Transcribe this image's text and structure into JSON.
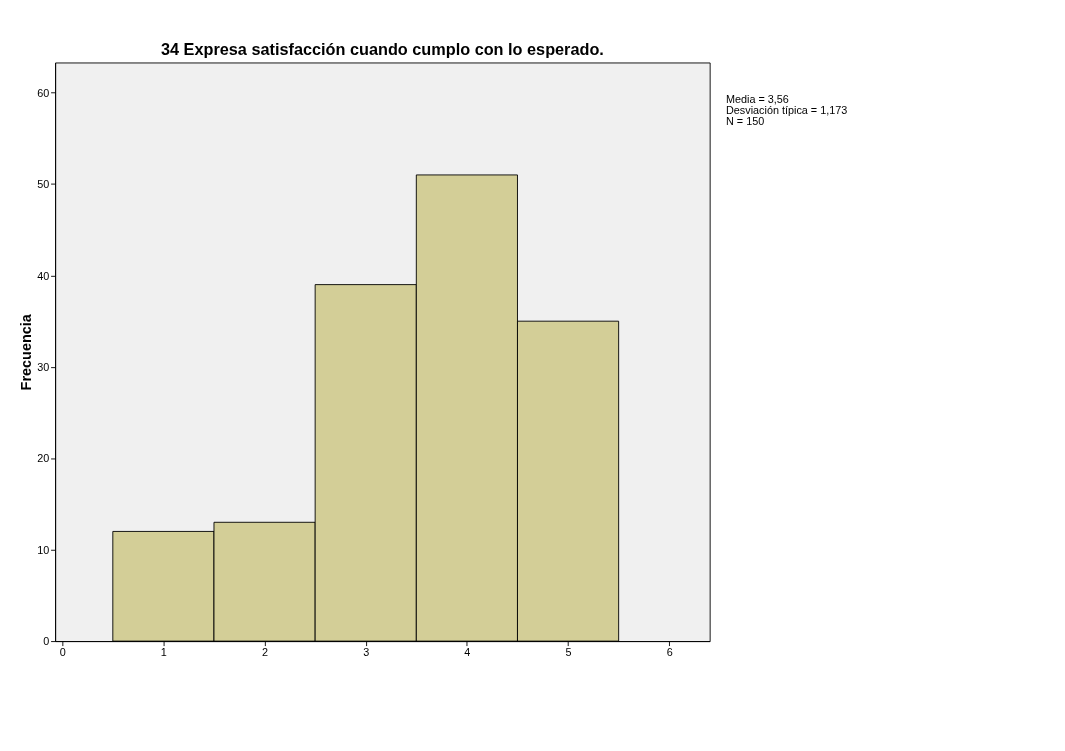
{
  "chart_data": {
    "type": "histogram",
    "title": "34 Expresa satisfacción cuando cumplo con lo esperado.",
    "ylabel": "Frecuencia",
    "bins": [
      0.5,
      1.5,
      2.5,
      3.5,
      4.5,
      5.5
    ],
    "values": [
      12,
      13,
      39,
      51,
      35
    ],
    "color": "#d3ce97",
    "xlim": [
      -0.07,
      6.4
    ],
    "xticks": [
      0,
      1,
      2,
      3,
      4,
      5,
      6
    ],
    "ylim": [
      0,
      63.3
    ],
    "yticks": [
      0,
      10,
      20,
      30,
      40,
      50,
      60
    ],
    "annotations": [
      "Media = 3,56",
      "Desviación típica = 1,173",
      "N = 150"
    ],
    "grid": false
  }
}
